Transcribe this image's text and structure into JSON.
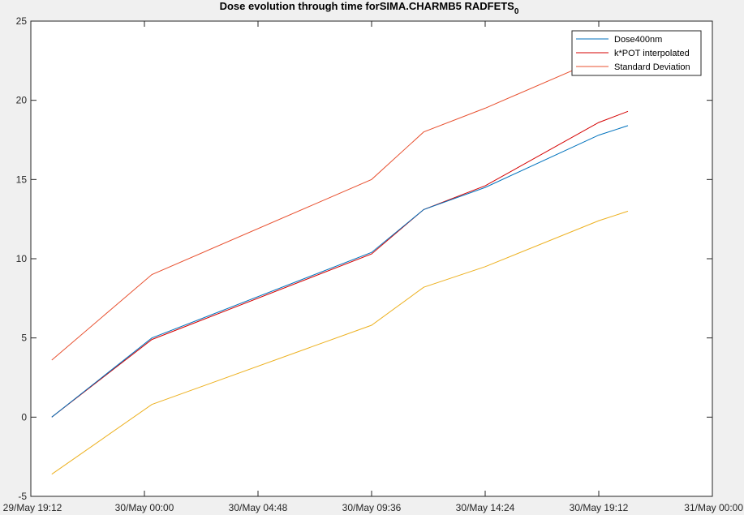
{
  "chart_data": {
    "type": "line",
    "title": "Dose evolution through time forSIMA.CHARMB5 RADFETS",
    "title_subscript": "0",
    "xlabel": "",
    "ylabel": "",
    "x_axis_type": "datetime",
    "xlim": [
      "29/May 19:12",
      "31/May 00:00"
    ],
    "ylim": [
      -5,
      25
    ],
    "x_ticks": [
      "29/May 19:12",
      "30/May 00:00",
      "30/May 04:48",
      "30/May 09:36",
      "30/May 14:24",
      "30/May 19:12",
      "31/May 00:00"
    ],
    "y_ticks": [
      -5,
      0,
      5,
      10,
      15,
      20,
      25
    ],
    "grid": false,
    "legend_position": "top-right",
    "x": [
      "29/May 20:05",
      "30/May 00:19",
      "30/May 09:36",
      "30/May 11:48",
      "30/May 14:24",
      "30/May 19:12",
      "30/May 20:26"
    ],
    "series": [
      {
        "name": "Dose400nm",
        "color": "#0072bd",
        "values": [
          0,
          5.0,
          10.4,
          13.1,
          14.5,
          17.8,
          18.4
        ]
      },
      {
        "name": "k*POT interpolated",
        "color": "#d40000",
        "values": [
          0,
          4.9,
          10.3,
          13.1,
          14.6,
          18.6,
          19.3
        ]
      },
      {
        "name": "Standard Deviation",
        "color": "#e8502f",
        "values": [
          3.6,
          9.0,
          15.0,
          18.0,
          19.5,
          22.6,
          23.5
        ]
      },
      {
        "name": "",
        "color": "#edb120",
        "values": [
          -3.6,
          0.8,
          5.8,
          8.2,
          9.5,
          12.4,
          13.0
        ]
      }
    ]
  }
}
